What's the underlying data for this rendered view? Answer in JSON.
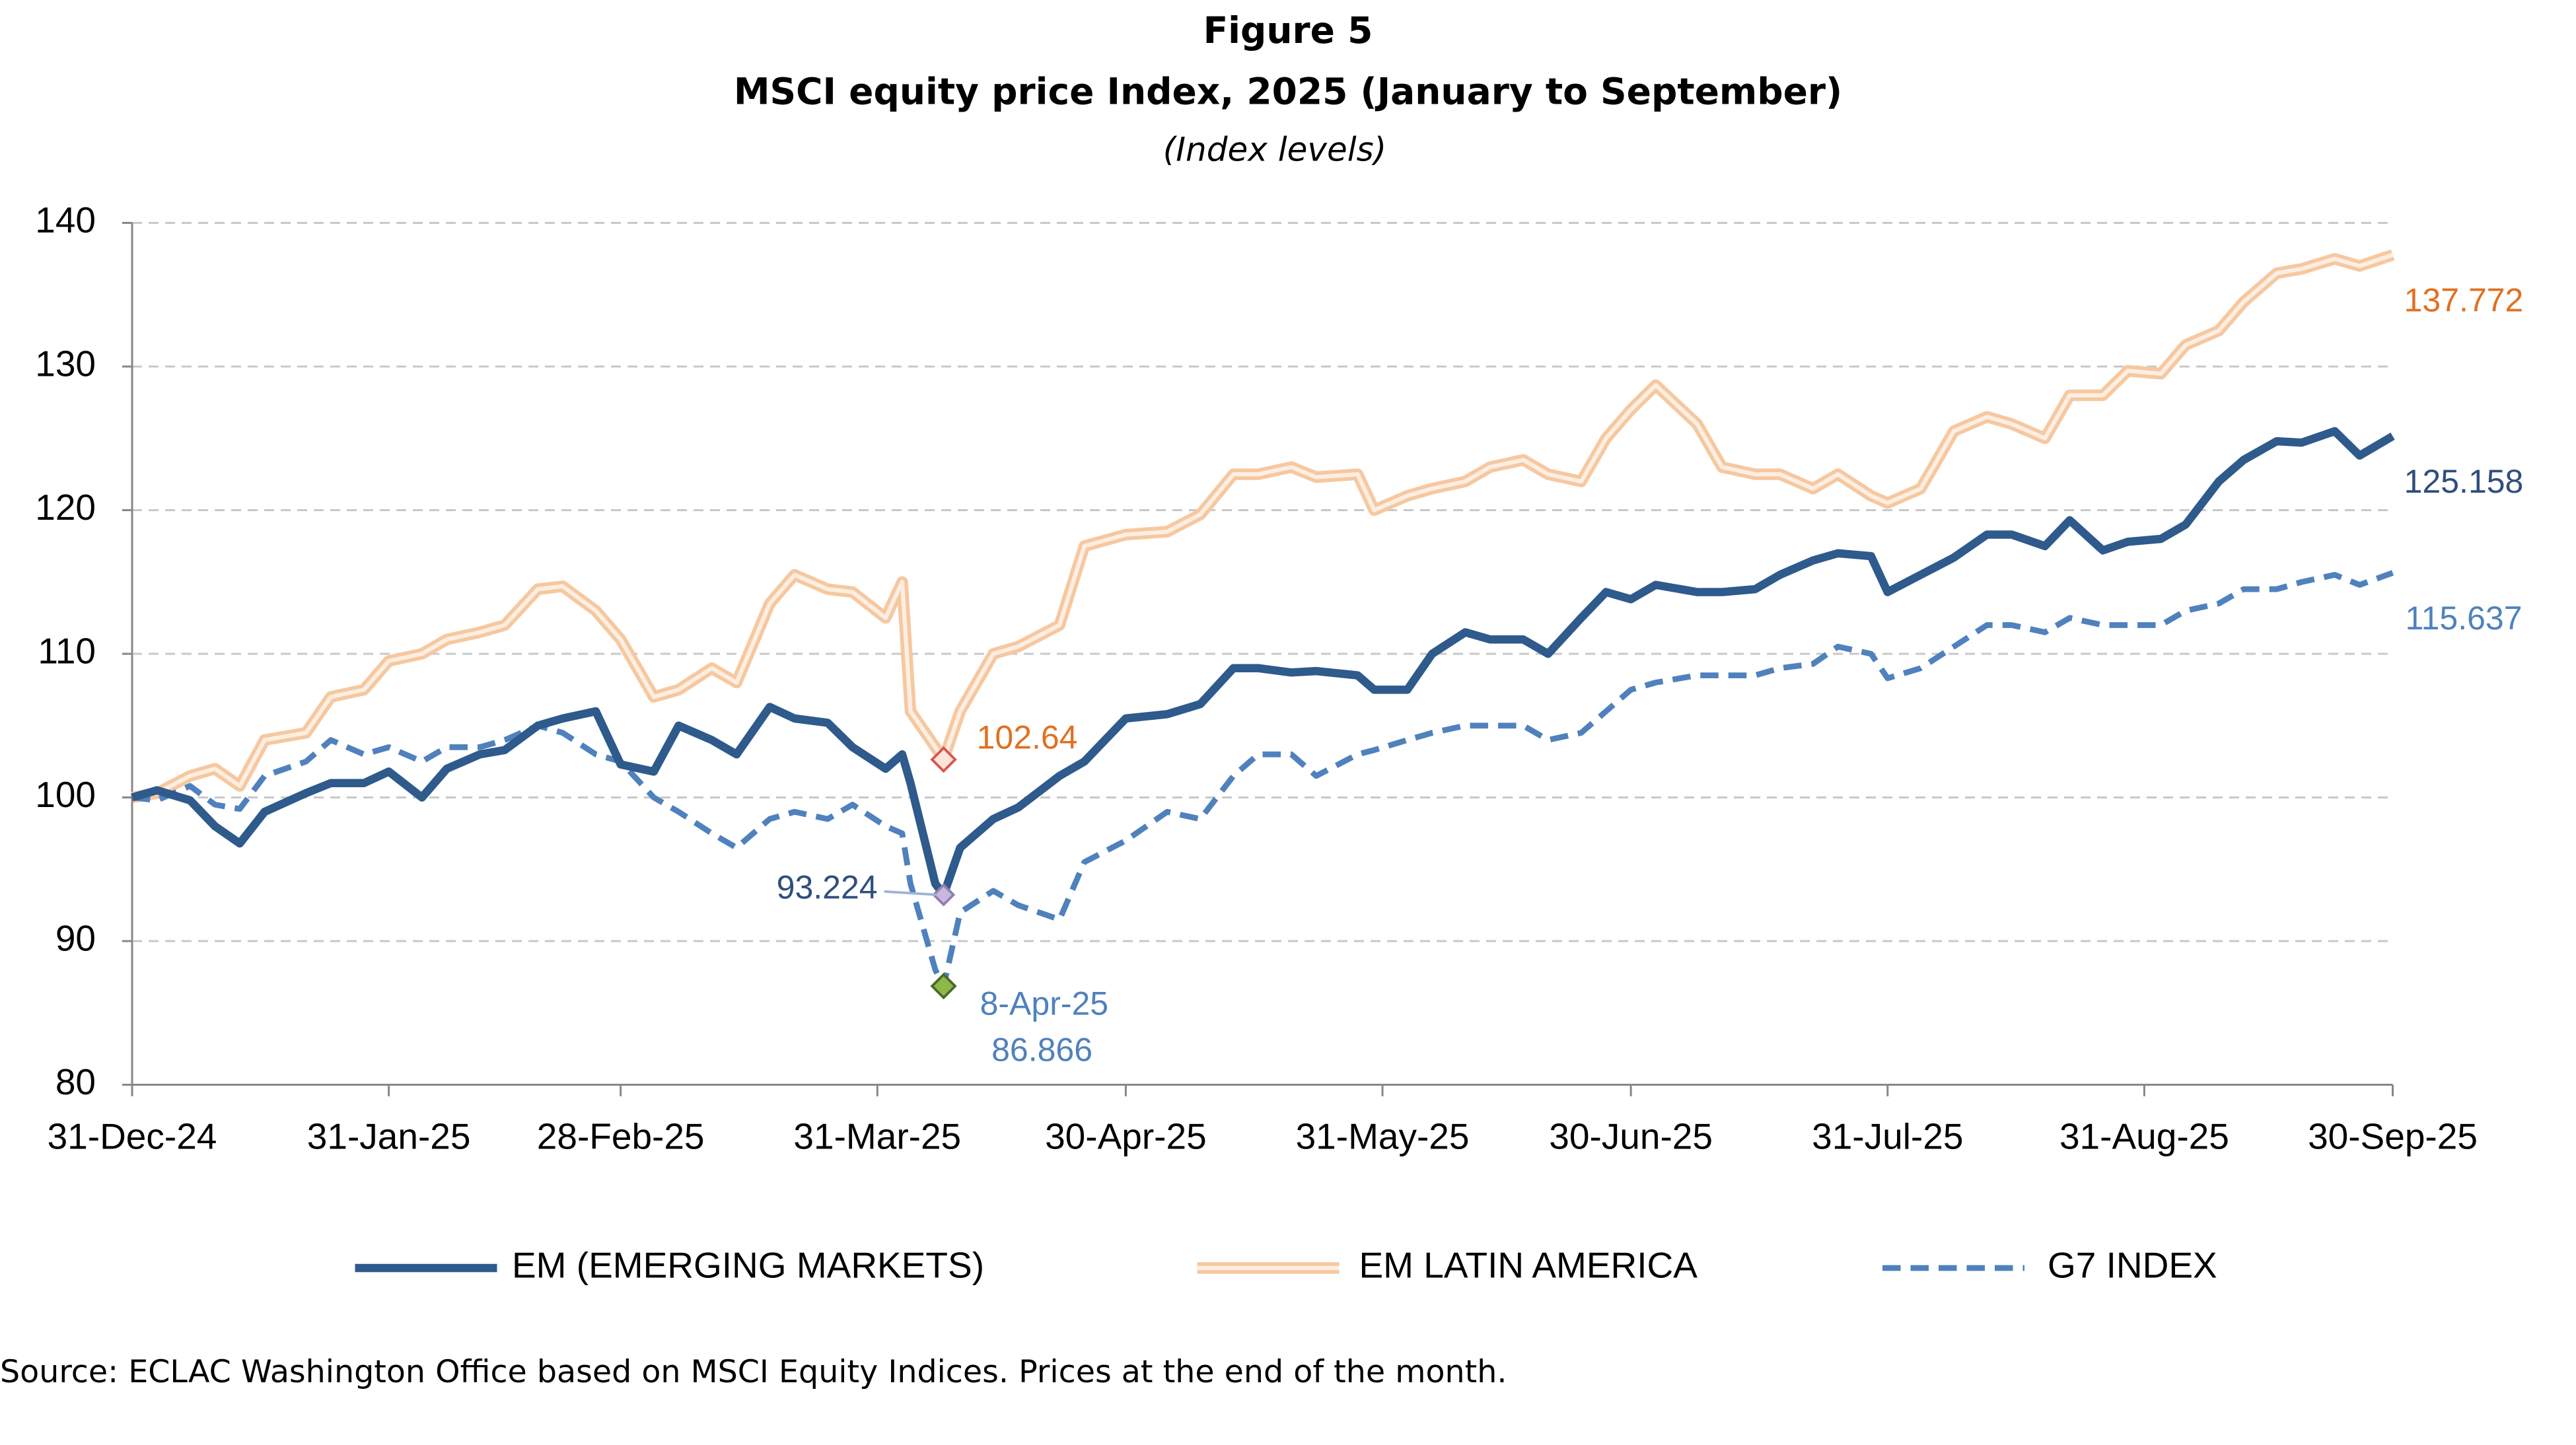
{
  "chart_data": {
    "type": "line",
    "figure_label": "Figure 5",
    "title": "MSCI equity price Index, 2025 (January to September)",
    "subtitle": "(Index levels)",
    "source": "Source: ECLAC Washington Office based on MSCI Equity Indices. Prices at the end of the month.",
    "annotations": [
      "8-Apr-25"
    ],
    "x": [
      "2024-12-31",
      "2025-01-03",
      "2025-01-07",
      "2025-01-10",
      "2025-01-13",
      "2025-01-16",
      "2025-01-21",
      "2025-01-24",
      "2025-01-28",
      "2025-01-31",
      "2025-02-04",
      "2025-02-07",
      "2025-02-11",
      "2025-02-14",
      "2025-02-18",
      "2025-02-21",
      "2025-02-25",
      "2025-02-28",
      "2025-03-04",
      "2025-03-07",
      "2025-03-11",
      "2025-03-14",
      "2025-03-18",
      "2025-03-21",
      "2025-03-25",
      "2025-03-28",
      "2025-04-01",
      "2025-04-03",
      "2025-04-04",
      "2025-04-07",
      "2025-04-08",
      "2025-04-10",
      "2025-04-14",
      "2025-04-17",
      "2025-04-22",
      "2025-04-25",
      "2025-04-30",
      "2025-05-05",
      "2025-05-09",
      "2025-05-13",
      "2025-05-16",
      "2025-05-20",
      "2025-05-23",
      "2025-05-28",
      "2025-05-30",
      "2025-06-03",
      "2025-06-06",
      "2025-06-10",
      "2025-06-13",
      "2025-06-17",
      "2025-06-20",
      "2025-06-24",
      "2025-06-27",
      "2025-06-30",
      "2025-07-03",
      "2025-07-08",
      "2025-07-11",
      "2025-07-15",
      "2025-07-18",
      "2025-07-22",
      "2025-07-25",
      "2025-07-29",
      "2025-07-31",
      "2025-08-04",
      "2025-08-08",
      "2025-08-12",
      "2025-08-15",
      "2025-08-19",
      "2025-08-22",
      "2025-08-26",
      "2025-08-29",
      "2025-09-02",
      "2025-09-05",
      "2025-09-09",
      "2025-09-12",
      "2025-09-16",
      "2025-09-19",
      "2025-09-23",
      "2025-09-26",
      "2025-09-30"
    ],
    "series": [
      {
        "name": "EM (EMERGING MARKETS)",
        "color": "#2e5a8c",
        "style": "solid",
        "values": [
          100,
          100.5,
          99.8,
          98,
          96.8,
          99,
          100.3,
          101,
          101,
          101.8,
          100,
          102,
          103,
          103.3,
          105,
          105.5,
          106,
          102.3,
          101.8,
          105,
          104,
          103,
          106.3,
          105.5,
          105.2,
          103.5,
          102,
          103,
          101,
          94,
          93.224,
          96.5,
          98.5,
          99.3,
          101.5,
          102.5,
          105.5,
          105.8,
          106.5,
          109,
          109,
          108.7,
          108.8,
          108.5,
          107.5,
          107.5,
          110,
          111.5,
          111,
          111,
          110,
          112.5,
          114.3,
          113.8,
          114.8,
          114.3,
          114.3,
          114.5,
          115.5,
          116.5,
          117,
          116.8,
          114.3,
          115.5,
          116.7,
          118.3,
          118.3,
          117.5,
          119.3,
          117.2,
          117.8,
          118,
          119,
          122,
          123.5,
          124.8,
          124.7,
          125.5,
          123.8,
          125.158
        ]
      },
      {
        "name": "EM LATIN AMERICA",
        "color": "#f6c8a0",
        "style": "double",
        "values": [
          100,
          100.3,
          101.5,
          102,
          100.8,
          104,
          104.5,
          107,
          107.5,
          109.5,
          110,
          111,
          111.5,
          112,
          114.5,
          114.7,
          113,
          111,
          107,
          107.5,
          109,
          108,
          113.5,
          115.5,
          114.5,
          114.3,
          112.5,
          115,
          106,
          103.5,
          102.64,
          106,
          110,
          110.5,
          112,
          117.5,
          118.3,
          118.5,
          119.7,
          122.5,
          122.5,
          123,
          122.3,
          122.5,
          120,
          121,
          121.5,
          122,
          123,
          123.5,
          122.5,
          122,
          125,
          127,
          128.7,
          126,
          123,
          122.5,
          122.5,
          121.5,
          122.5,
          121,
          120.5,
          121.5,
          125.5,
          126.5,
          126,
          125,
          128,
          128,
          129.7,
          129.5,
          131.5,
          132.5,
          134.5,
          136.5,
          136.8,
          137.5,
          137,
          137.772
        ]
      },
      {
        "name": "G7 INDEX",
        "color": "#4f81bd",
        "style": "dashed",
        "values": [
          100,
          99.8,
          100.8,
          99.5,
          99.2,
          101.5,
          102.5,
          104,
          103,
          103.5,
          102.5,
          103.5,
          103.5,
          104,
          105,
          104.5,
          103,
          102.5,
          100,
          99,
          97.5,
          96.5,
          98.5,
          99,
          98.5,
          99.5,
          98,
          97.5,
          94,
          88,
          86.866,
          92,
          93.5,
          92.5,
          91.5,
          95.5,
          97,
          99,
          98.5,
          101.5,
          103,
          103,
          101.5,
          103,
          103.3,
          104,
          104.5,
          105,
          105,
          105,
          104,
          104.5,
          106,
          107.5,
          108,
          108.5,
          108.5,
          108.5,
          109,
          109.3,
          110.5,
          110,
          108.3,
          109,
          110.5,
          112,
          112,
          111.5,
          112.5,
          112,
          112,
          112,
          113,
          113.5,
          114.5,
          114.5,
          115,
          115.5,
          114.8,
          115.637
        ]
      }
    ],
    "xlim": [
      "2024-12-31",
      "2025-09-30"
    ],
    "xticks": [
      {
        "value": "2024-12-31",
        "label": "31-Dec-24"
      },
      {
        "value": "2025-01-31",
        "label": "31-Jan-25"
      },
      {
        "value": "2025-02-28",
        "label": "28-Feb-25"
      },
      {
        "value": "2025-03-31",
        "label": "31-Mar-25"
      },
      {
        "value": "2025-04-30",
        "label": "30-Apr-25"
      },
      {
        "value": "2025-05-31",
        "label": "31-May-25"
      },
      {
        "value": "2025-06-30",
        "label": "30-Jun-25"
      },
      {
        "value": "2025-07-31",
        "label": "31-Jul-25"
      },
      {
        "value": "2025-08-31",
        "label": "31-Aug-25"
      },
      {
        "value": "2025-09-30",
        "label": "30-Sep-25"
      }
    ],
    "ylim": [
      80,
      140
    ],
    "yticks": [
      80,
      90,
      100,
      110,
      120,
      130,
      140
    ],
    "grid": true,
    "legend": "bottom"
  }
}
